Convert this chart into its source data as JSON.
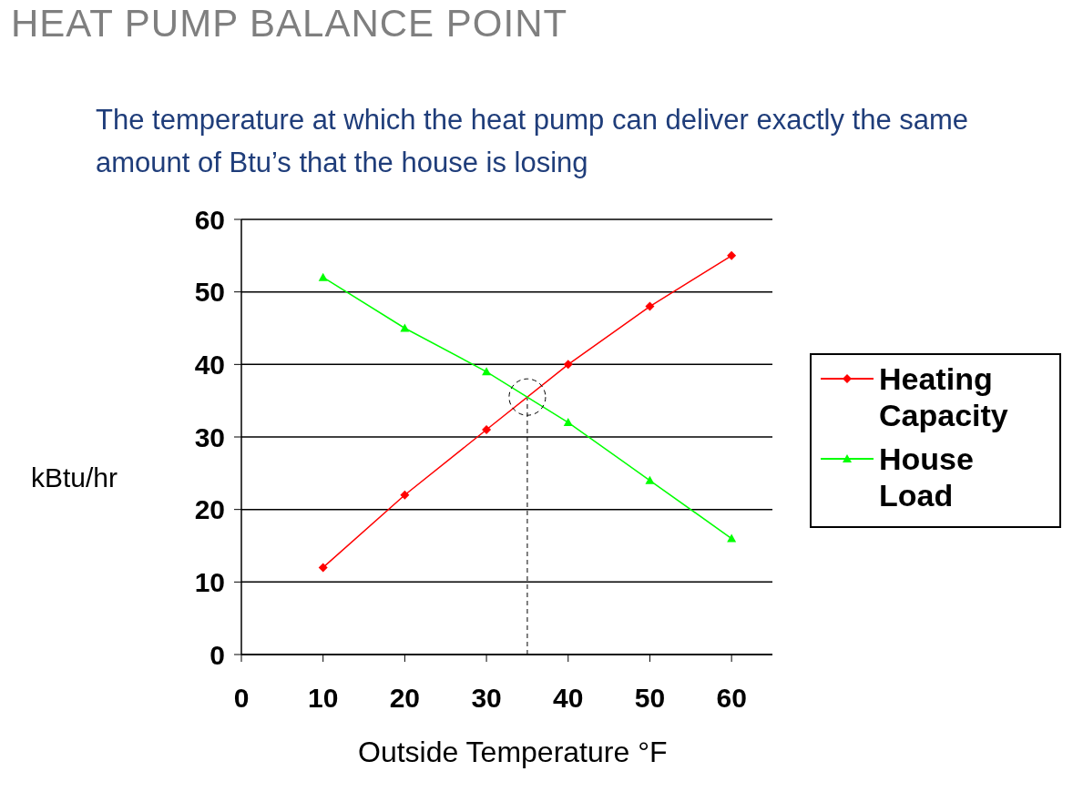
{
  "chart_data": {
    "type": "line",
    "title": "HEAT PUMP BALANCE POINT",
    "subtitle": "The temperature at which the heat pump can deliver exactly the same amount of Btu’s that the house is losing",
    "xlabel": "Outside Temperature °F",
    "ylabel": "kBtu/hr",
    "x": [
      10,
      20,
      30,
      40,
      50,
      60
    ],
    "series": [
      {
        "name": "Heating Capacity",
        "color": "#ff0000",
        "marker": "diamond",
        "values": [
          12,
          22,
          31,
          40,
          48,
          55
        ]
      },
      {
        "name": "House Load",
        "color": "#00ff00",
        "marker": "triangle",
        "values": [
          52,
          45,
          39,
          32,
          24,
          16
        ]
      }
    ],
    "xlim": [
      0,
      65
    ],
    "xticks": [
      0,
      10,
      20,
      30,
      40,
      50,
      60
    ],
    "ylim": [
      0,
      60
    ],
    "yticks": [
      0,
      10,
      20,
      30,
      40,
      50,
      60
    ],
    "grid": "y",
    "legend": "right",
    "ref_lines": [
      {
        "axis": "x",
        "value": 35,
        "line_style": "dashed"
      }
    ]
  }
}
